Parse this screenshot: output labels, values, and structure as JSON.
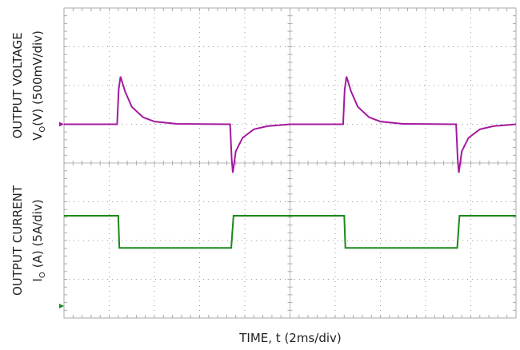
{
  "chart_data": {
    "type": "line",
    "xlabel": "TIME, t (2ms/div)",
    "xlim": [
      0,
      20
    ],
    "xticks": [
      0,
      2,
      4,
      6,
      8,
      10,
      12,
      14,
      16,
      18,
      20
    ],
    "ylim": [
      0,
      8
    ],
    "yticks": [
      0,
      1,
      2,
      3,
      4,
      5,
      6,
      7,
      8
    ],
    "grid": true,
    "series": [
      {
        "color": "#a3199f",
        "marker_level": 5,
        "label_line1": "OUTPUT VOLTAGE",
        "label_symbol": "V",
        "label_subscript": "O",
        "label_unit": "(V) (500mV/div)",
        "x": [
          0,
          2.35,
          2.42,
          2.5,
          2.7,
          3.0,
          3.5,
          4.0,
          5.0,
          7.35,
          7.42,
          7.47,
          7.6,
          7.9,
          8.4,
          9.0,
          10.0,
          12.35,
          12.42,
          12.5,
          12.7,
          13.0,
          13.5,
          14.0,
          15.0,
          17.35,
          17.42,
          17.47,
          17.6,
          17.9,
          18.4,
          19.0,
          20.0
        ],
        "values": [
          5.0,
          5.0,
          5.9,
          6.23,
          5.85,
          5.45,
          5.18,
          5.07,
          5.01,
          5.0,
          4.1,
          3.75,
          4.3,
          4.65,
          4.87,
          4.95,
          5.0,
          5.0,
          5.9,
          6.23,
          5.85,
          5.45,
          5.18,
          5.07,
          5.01,
          5.0,
          4.1,
          3.75,
          4.3,
          4.65,
          4.87,
          4.95,
          5.0
        ]
      },
      {
        "color": "#1a8a1a",
        "marker_level": 0.31,
        "label_line1": "OUTPUT CURRENT",
        "label_symbol": "I",
        "label_subscript": "O",
        "label_unit": "(A) (5A/div)",
        "x": [
          0,
          2.4,
          2.45,
          7.4,
          7.5,
          12.4,
          12.45,
          17.4,
          17.5,
          20
        ],
        "values": [
          2.64,
          2.64,
          1.81,
          1.81,
          2.64,
          2.64,
          1.81,
          1.81,
          2.64,
          2.64
        ]
      }
    ]
  }
}
